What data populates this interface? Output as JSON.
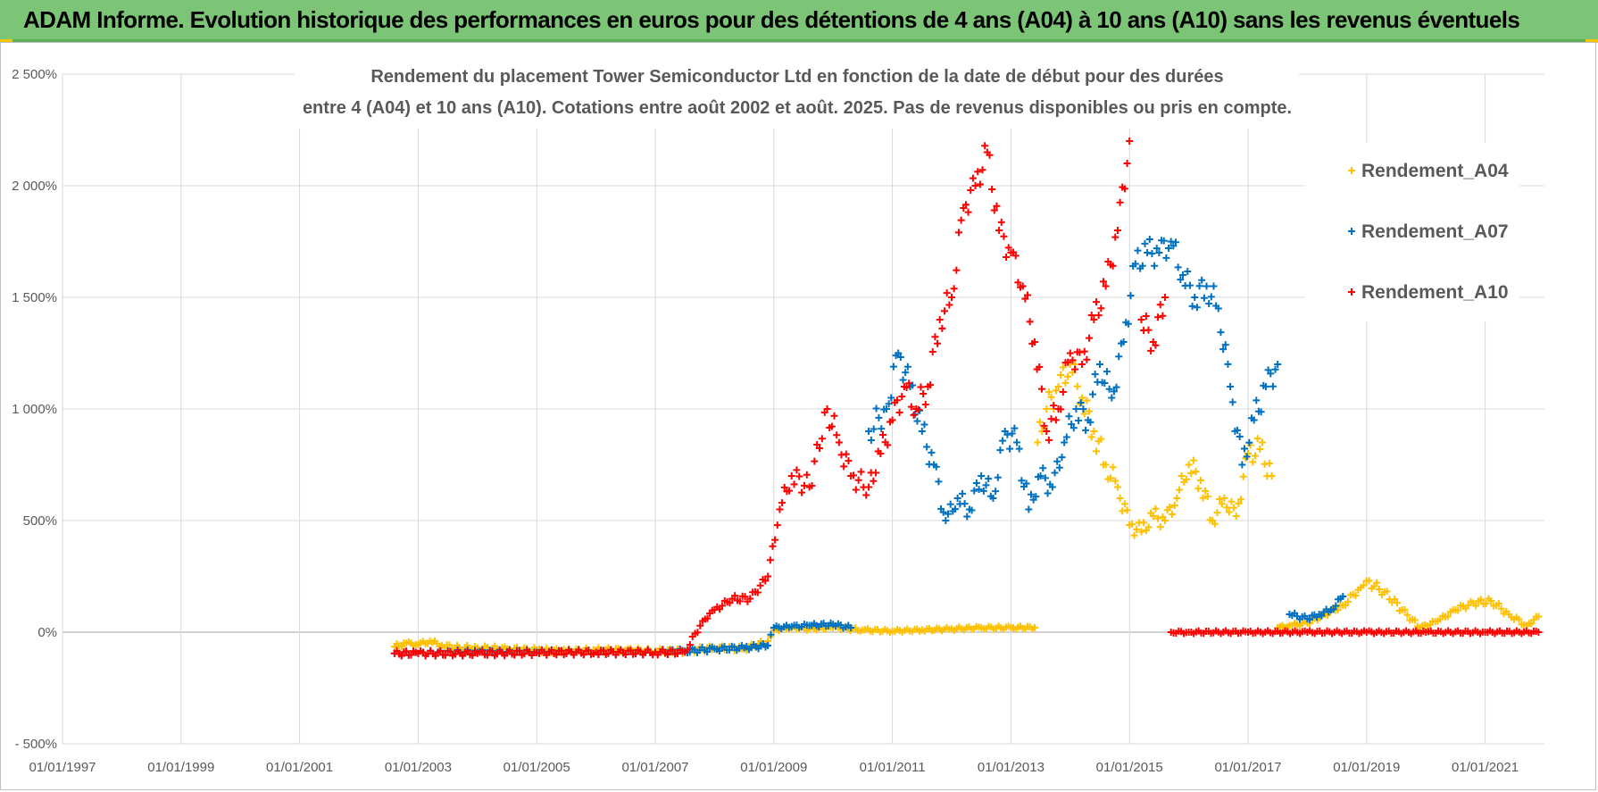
{
  "banner": {
    "title": "ADAM Informe. Evolution historique des performances en euros pour des détentions de 4 ans (A04) à 10 ans (A10) sans les revenus éventuels"
  },
  "colors": {
    "banner": "#7cc576",
    "A04": "#ffc000",
    "A07": "#0070c0",
    "A10": "#ff0000"
  },
  "chart_data": {
    "type": "scatter",
    "title_lines": [
      "Rendement du placement Tower Semiconductor Ltd en fonction de la date de début pour des durées",
      "entre 4 (A04) et 10 ans (A10). Cotations entre août 2002 et août. 2025. Pas de revenus disponibles ou pris en compte."
    ],
    "y_tick_labels": [
      "- 500%",
      "0%",
      "500%",
      "1 000%",
      "1 500%",
      "2 000%",
      "2 500%"
    ],
    "y_tick_values": [
      -500,
      0,
      500,
      1000,
      1500,
      2000,
      2500
    ],
    "ylim": [
      -500,
      2500
    ],
    "x_tick_labels": [
      "01/01/1997",
      "01/01/1999",
      "01/01/2001",
      "01/01/2003",
      "01/01/2005",
      "01/01/2007",
      "01/01/2009",
      "01/01/2011",
      "01/01/2013",
      "01/01/2015",
      "01/01/2017",
      "01/01/2019",
      "01/01/2021"
    ],
    "x_tick_values": [
      1997,
      1999,
      2001,
      2003,
      2005,
      2007,
      2009,
      2011,
      2013,
      2015,
      2017,
      2019,
      2021
    ],
    "xlim": [
      1997,
      2022
    ],
    "grid": true,
    "legend_position": "right",
    "series": [
      {
        "name": "Rendement_A04",
        "x": [
          2002.6,
          2002.8,
          2003.0,
          2003.2,
          2003.4,
          2003.7,
          2004.0,
          2004.5,
          2005.0,
          2005.5,
          2006.0,
          2006.5,
          2007.0,
          2007.5,
          2008.0,
          2008.5,
          2008.9,
          2009.0,
          2009.3,
          2009.6,
          2010.0,
          2010.5,
          2011.0,
          2011.5,
          2012.0,
          2012.5,
          2013.0,
          2013.4,
          2013.45,
          2013.6,
          2013.8,
          2014.0,
          2014.2,
          2014.4,
          2014.6,
          2014.8,
          2015.0,
          2015.2,
          2015.4,
          2015.6,
          2015.8,
          2016.0,
          2016.2,
          2016.4,
          2016.6,
          2016.8,
          2017.0,
          2017.2,
          2017.4,
          2017.5,
          2017.7,
          2018.0,
          2018.3,
          2018.6,
          2018.9,
          2019.0,
          2019.3,
          2019.6,
          2019.9,
          2020.2,
          2020.5,
          2020.8,
          2021.1,
          2021.4,
          2021.7,
          2021.9
        ],
        "y": [
          -65,
          -50,
          -55,
          -40,
          -60,
          -70,
          -70,
          -75,
          -80,
          -85,
          -80,
          -80,
          -85,
          -85,
          -70,
          -75,
          -40,
          10,
          20,
          15,
          20,
          10,
          5,
          10,
          15,
          20,
          20,
          20,
          850,
          1000,
          1100,
          1200,
          1050,
          900,
          750,
          650,
          480,
          450,
          520,
          500,
          600,
          750,
          680,
          500,
          600,
          520,
          800,
          820,
          700,
          20,
          30,
          40,
          80,
          120,
          200,
          230,
          180,
          100,
          20,
          50,
          100,
          130,
          140,
          80,
          30,
          70
        ]
      },
      {
        "name": "Rendement_A07",
        "x": [
          2002.6,
          2003.0,
          2004.0,
          2005.0,
          2006.0,
          2007.0,
          2007.5,
          2008.0,
          2008.5,
          2008.9,
          2009.0,
          2009.3,
          2009.6,
          2010.0,
          2010.3,
          2010.6,
          2010.9,
          2011.1,
          2011.3,
          2011.5,
          2011.7,
          2011.9,
          2012.1,
          2012.3,
          2012.5,
          2012.7,
          2012.9,
          2013.1,
          2013.3,
          2013.5,
          2013.7,
          2013.9,
          2014.1,
          2014.3,
          2014.5,
          2014.7,
          2014.9,
          2015.1,
          2015.3,
          2015.5,
          2015.7,
          2015.9,
          2016.1,
          2016.3,
          2016.5,
          2016.7,
          2016.9,
          2017.1,
          2017.3,
          2017.5,
          2017.7,
          2018.0,
          2018.2,
          2018.4,
          2018.6
        ],
        "y": [
          -95,
          -95,
          -90,
          -90,
          -90,
          -90,
          -85,
          -75,
          -70,
          -60,
          20,
          25,
          30,
          35,
          20,
          900,
          1000,
          1250,
          1100,
          900,
          750,
          500,
          600,
          550,
          700,
          600,
          900,
          850,
          550,
          700,
          650,
          850,
          1000,
          950,
          1200,
          1050,
          1300,
          1650,
          1700,
          1700,
          1750,
          1600,
          1500,
          1550,
          1450,
          1100,
          750,
          950,
          1100,
          1200,
          80,
          60,
          80,
          100,
          160
        ]
      },
      {
        "name": "Rendement_A10",
        "x": [
          2002.6,
          2003.0,
          2004.0,
          2005.0,
          2006.0,
          2007.0,
          2007.5,
          2007.8,
          2008.0,
          2008.3,
          2008.6,
          2008.9,
          2009.1,
          2009.3,
          2009.6,
          2009.9,
          2010.1,
          2010.3,
          2010.6,
          2010.8,
          2011.0,
          2011.2,
          2011.4,
          2011.6,
          2011.8,
          2012.0,
          2012.2,
          2012.4,
          2012.6,
          2012.8,
          2013.0,
          2013.2,
          2013.4,
          2013.6,
          2013.8,
          2014.0,
          2014.2,
          2014.4,
          2014.6,
          2014.8,
          2015.0,
          2015.2,
          2015.4,
          2015.6,
          2015.7,
          2016.0,
          2017.0,
          2018.0,
          2019.0,
          2020.0,
          2021.0,
          2021.9
        ],
        "y": [
          -95,
          -95,
          -95,
          -92,
          -90,
          -90,
          -90,
          50,
          100,
          150,
          150,
          250,
          550,
          700,
          650,
          1000,
          850,
          700,
          650,
          800,
          950,
          1100,
          1000,
          1100,
          1400,
          1500,
          1900,
          2000,
          2150,
          1800,
          1700,
          1550,
          1300,
          900,
          1000,
          1250,
          1200,
          1400,
          1550,
          1800,
          2200,
          1400,
          1300,
          1500,
          0,
          0,
          0,
          0,
          0,
          0,
          0,
          0
        ]
      }
    ]
  }
}
